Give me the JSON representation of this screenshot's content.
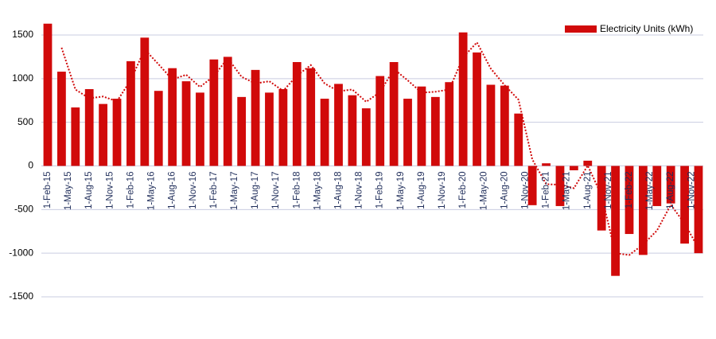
{
  "chart_data": {
    "type": "bar",
    "x": [
      "2015-02-01",
      "2015-04-01",
      "2015-06-01",
      "2015-08-01",
      "2015-10-01",
      "2015-12-01",
      "2016-02-01",
      "2016-04-01",
      "2016-06-01",
      "2016-08-01",
      "2016-10-01",
      "2016-12-01",
      "2017-02-01",
      "2017-04-01",
      "2017-06-01",
      "2017-08-01",
      "2017-10-01",
      "2017-12-01",
      "2018-02-01",
      "2018-04-01",
      "2018-06-01",
      "2018-08-01",
      "2018-10-01",
      "2018-12-01",
      "2019-02-01",
      "2019-04-01",
      "2019-06-01",
      "2019-08-01",
      "2019-10-01",
      "2019-12-01",
      "2020-02-01",
      "2020-04-01",
      "2020-06-01",
      "2020-08-01",
      "2020-10-01",
      "2020-12-01",
      "2021-02-01",
      "2021-04-01",
      "2021-06-01",
      "2021-08-01",
      "2021-10-01",
      "2021-12-01",
      "2022-02-01",
      "2022-04-01",
      "2022-06-01",
      "2022-08-01",
      "2022-10-01",
      "2022-12-01"
    ],
    "series": [
      {
        "name": "Electricity Units (kWh)",
        "color": "#d10a0a",
        "values": [
          1630,
          1080,
          670,
          880,
          710,
          770,
          1200,
          1470,
          860,
          1120,
          970,
          840,
          1220,
          1250,
          790,
          1100,
          840,
          880,
          1190,
          1120,
          770,
          940,
          810,
          660,
          1030,
          1190,
          770,
          910,
          790,
          960,
          1530,
          1300,
          930,
          920,
          600,
          -450,
          30,
          -460,
          -50,
          60,
          -740,
          -1260,
          -780,
          -1020,
          -460,
          -430,
          -890,
          -1000
        ]
      },
      {
        "type": "line",
        "style": "dotted",
        "color": "#d10a0a",
        "values": [
          null,
          1355,
          875,
          775,
          795,
          740,
          985,
          1335,
          1165,
          990,
          1045,
          905,
          1030,
          1235,
          1020,
          945,
          970,
          860,
          1035,
          1155,
          945,
          855,
          875,
          735,
          845,
          1110,
          980,
          840,
          850,
          875,
          1245,
          1415,
          1115,
          925,
          760,
          75,
          -210,
          -215,
          -255,
          5,
          -340,
          -1000,
          -1020,
          -900,
          -740,
          -445,
          -660,
          -945
        ]
      }
    ],
    "xticks": [
      {
        "value": "2015-02-01",
        "label": "1-Feb-15"
      },
      {
        "value": "2015-05-01",
        "label": "1-May-15"
      },
      {
        "value": "2015-08-01",
        "label": "1-Aug-15"
      },
      {
        "value": "2015-11-01",
        "label": "1-Nov-15"
      },
      {
        "value": "2016-02-01",
        "label": "1-Feb-16"
      },
      {
        "value": "2016-05-01",
        "label": "1-May-16"
      },
      {
        "value": "2016-08-01",
        "label": "1-Aug-16"
      },
      {
        "value": "2016-11-01",
        "label": "1-Nov-16"
      },
      {
        "value": "2017-02-01",
        "label": "1-Feb-17"
      },
      {
        "value": "2017-05-01",
        "label": "1-May-17"
      },
      {
        "value": "2017-08-01",
        "label": "1-Aug-17"
      },
      {
        "value": "2017-11-01",
        "label": "1-Nov-17"
      },
      {
        "value": "2018-02-01",
        "label": "1-Feb-18"
      },
      {
        "value": "2018-05-01",
        "label": "1-May-18"
      },
      {
        "value": "2018-08-01",
        "label": "1-Aug-18"
      },
      {
        "value": "2018-11-01",
        "label": "1-Nov-18"
      },
      {
        "value": "2019-02-01",
        "label": "1-Feb-19"
      },
      {
        "value": "2019-05-01",
        "label": "1-May-19"
      },
      {
        "value": "2019-08-01",
        "label": "1-Aug-19"
      },
      {
        "value": "2019-11-01",
        "label": "1-Nov-19"
      },
      {
        "value": "2020-02-01",
        "label": "1-Feb-20"
      },
      {
        "value": "2020-05-01",
        "label": "1-May-20"
      },
      {
        "value": "2020-08-01",
        "label": "1-Aug-20"
      },
      {
        "value": "2020-11-01",
        "label": "1-Nov-20"
      },
      {
        "value": "2021-02-01",
        "label": "1-Feb-21"
      },
      {
        "value": "2021-05-01",
        "label": "1-May-21"
      },
      {
        "value": "2021-08-01",
        "label": "1-Aug-21"
      },
      {
        "value": "2021-11-01",
        "label": "1-Nov-21"
      },
      {
        "value": "2022-02-01",
        "label": "1-Feb-22"
      },
      {
        "value": "2022-05-01",
        "label": "1-May-22"
      },
      {
        "value": "2022-08-01",
        "label": "1-Aug-22"
      },
      {
        "value": "2022-11-01",
        "label": "1-Nov-22"
      }
    ],
    "ylim": [
      -1500,
      1500
    ],
    "yticks": [
      -1500,
      -1000,
      -500,
      0,
      500,
      1000,
      1500
    ],
    "grid": true,
    "legend": "top-right"
  }
}
